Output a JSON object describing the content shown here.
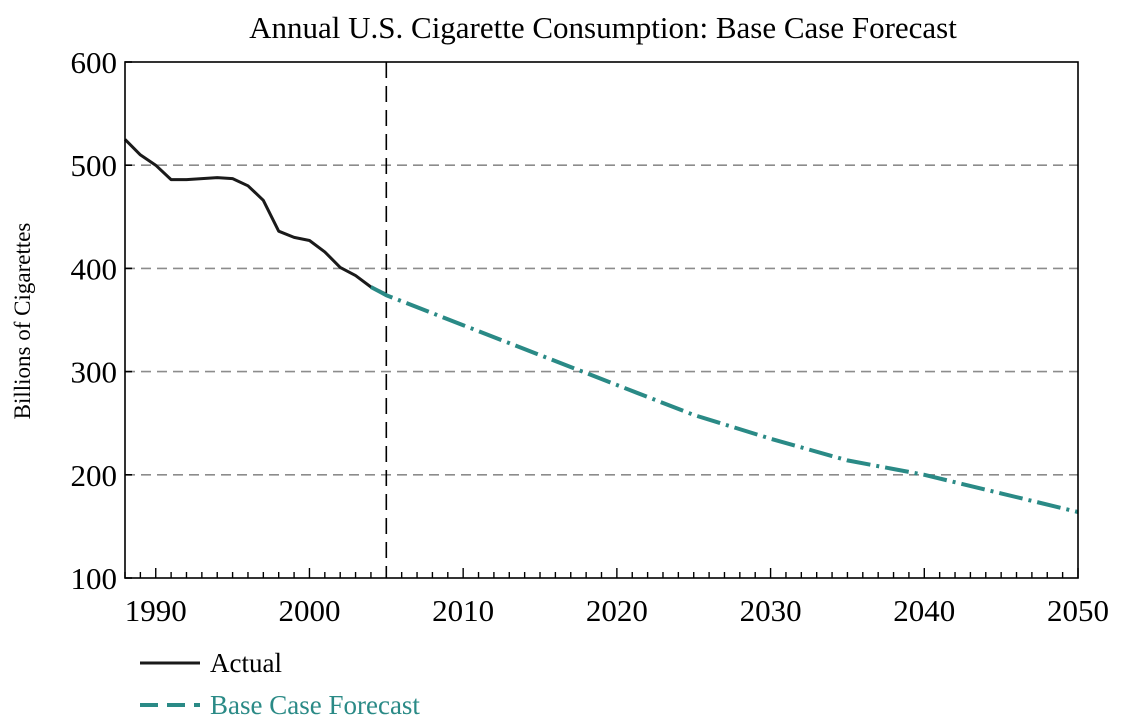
{
  "chart_data": {
    "type": "line",
    "title": "Annual U.S. Cigarette Consumption: Base Case Forecast",
    "xlabel": "",
    "ylabel": "Billions of Cigarettes",
    "xlim": [
      1988,
      2050
    ],
    "ylim": [
      100,
      600
    ],
    "xticks": [
      1990,
      2000,
      2010,
      2020,
      2030,
      2040,
      2050
    ],
    "yticks": [
      100,
      200,
      300,
      400,
      500,
      600
    ],
    "grid": "horizontal dashed",
    "divider_x": 2005,
    "legend_position": "bottom-left",
    "series": [
      {
        "name": "Actual",
        "color": "#1a1a1a",
        "style": "solid",
        "x": [
          1988,
          1989,
          1990,
          1991,
          1992,
          1993,
          1994,
          1995,
          1996,
          1997,
          1998,
          1999,
          2000,
          2001,
          2002,
          2003,
          2004,
          2005
        ],
        "y": [
          525,
          510,
          500,
          486,
          486,
          487,
          488,
          487,
          480,
          466,
          436,
          430,
          427,
          416,
          401,
          393,
          382,
          375
        ]
      },
      {
        "name": "Base Case Forecast",
        "color": "#2a8a86",
        "style": "dashed",
        "x": [
          2004,
          2005,
          2010,
          2015,
          2020,
          2025,
          2030,
          2035,
          2040,
          2045,
          2050
        ],
        "y": [
          382,
          374,
          345,
          316,
          287,
          258,
          235,
          214,
          200,
          182,
          164
        ]
      }
    ]
  }
}
